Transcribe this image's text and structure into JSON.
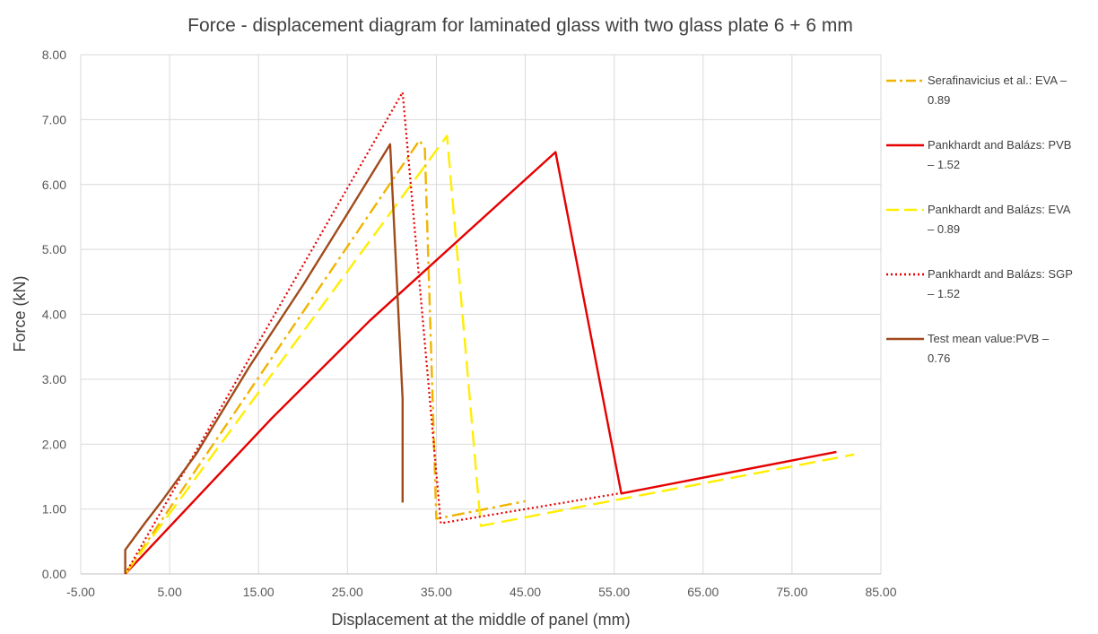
{
  "chart_data": {
    "type": "line",
    "title": "Force - displacement diagram for laminated glass with two glass plate 6 + 6 mm",
    "xlabel": "Displacement at the middle of panel (mm)",
    "ylabel": "Force (kN)",
    "xlim": [
      -5,
      85
    ],
    "ylim": [
      0,
      8
    ],
    "x_ticks": [
      "-5.00",
      "5.00",
      "15.00",
      "25.00",
      "35.00",
      "45.00",
      "55.00",
      "65.00",
      "75.00",
      "85.00"
    ],
    "y_ticks": [
      "0.00",
      "1.00",
      "2.00",
      "3.00",
      "4.00",
      "5.00",
      "6.00",
      "7.00",
      "8.00"
    ],
    "grid": true,
    "legend_position": "right",
    "series": [
      {
        "name_lines": [
          "Serafinavicius et al.: EVA –",
          "0.89"
        ],
        "color": "#f0b400",
        "style": "dash-dot",
        "points": [
          [
            0,
            0
          ],
          [
            33.1,
            6.68
          ],
          [
            33.7,
            6.55
          ],
          [
            35.0,
            0.85
          ],
          [
            45.0,
            1.12
          ]
        ]
      },
      {
        "name_lines": [
          "Pankhardt and Balázs: PVB",
          "– 1.52"
        ],
        "color": "#e60000",
        "style": "solid",
        "points": [
          [
            0,
            0
          ],
          [
            16.5,
            2.4
          ],
          [
            27.5,
            3.9
          ],
          [
            48.4,
            6.5
          ],
          [
            55.8,
            1.24
          ],
          [
            80.0,
            1.88
          ]
        ]
      },
      {
        "name_lines": [
          "Pankhardt and Balázs: EVA",
          "– 0.89"
        ],
        "color": "#ffee00",
        "style": "dash",
        "points": [
          [
            0,
            0
          ],
          [
            36.2,
            6.75
          ],
          [
            40.0,
            0.74
          ],
          [
            82.0,
            1.84
          ]
        ]
      },
      {
        "name_lines": [
          "Pankhardt and Balázs: SGP",
          "– 1.52"
        ],
        "color": "#e60000",
        "style": "dot",
        "points": [
          [
            0,
            0
          ],
          [
            31.2,
            7.42
          ],
          [
            35.5,
            0.78
          ],
          [
            56.0,
            1.25
          ]
        ]
      },
      {
        "name_lines": [
          "Test mean value:PVB –",
          "0.76"
        ],
        "color": "#a04a1a",
        "style": "solid",
        "points": [
          [
            0,
            0
          ],
          [
            0,
            0.37
          ],
          [
            2.2,
            0.78
          ],
          [
            4.0,
            1.1
          ],
          [
            8.0,
            1.85
          ],
          [
            14.0,
            3.2
          ],
          [
            20.0,
            4.45
          ],
          [
            25.0,
            5.55
          ],
          [
            29.8,
            6.62
          ],
          [
            31.2,
            2.7
          ],
          [
            31.2,
            1.1
          ]
        ]
      }
    ]
  }
}
